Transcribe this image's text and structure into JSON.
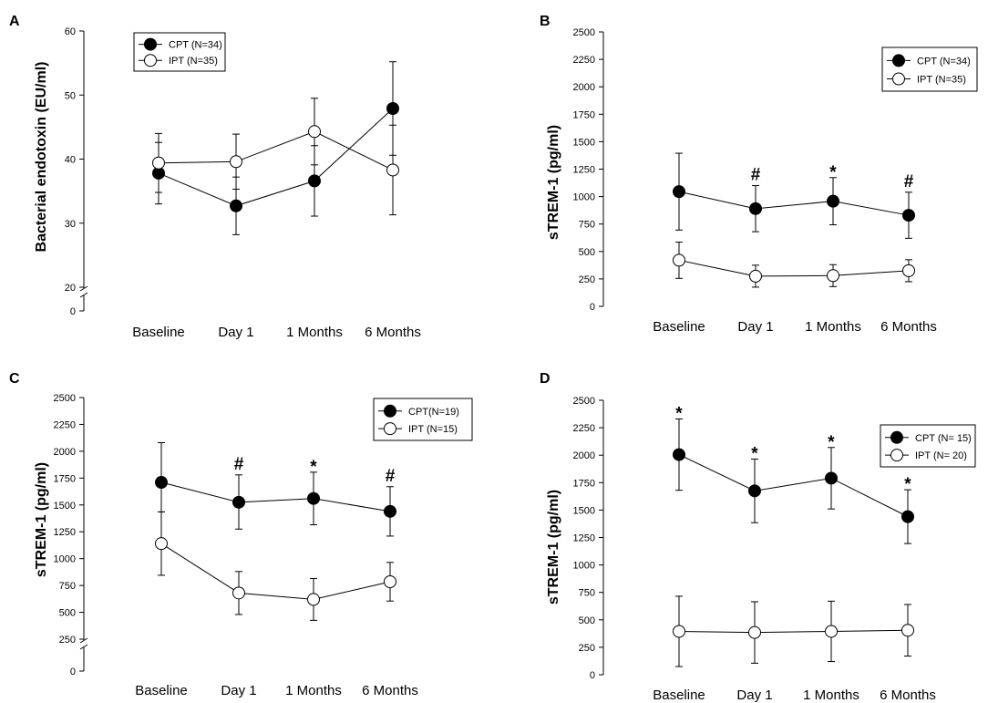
{
  "chart_data": [
    {
      "panel": "A",
      "type": "line",
      "ylabel": "Bacterial endotoxin (EU/ml)",
      "xlabel": "",
      "categories": [
        "Baseline",
        "Day 1",
        "1 Months",
        "6 Months"
      ],
      "ylim": [
        20,
        60
      ],
      "yticks": [
        20,
        30,
        40,
        50,
        60
      ],
      "axis_break": true,
      "below_break_tick": "0",
      "legend_position": "top-left",
      "series": [
        {
          "name": "CPT (N=34)",
          "marker": "filled",
          "values": [
            37.8,
            32.7,
            36.6,
            47.9
          ],
          "err_low": [
            4.8,
            4.5,
            5.5,
            7.3
          ],
          "err_high": [
            4.8,
            4.5,
            5.5,
            7.3
          ]
        },
        {
          "name": "IPT (N=35)",
          "marker": "open",
          "values": [
            39.4,
            39.6,
            44.3,
            38.3
          ],
          "err_low": [
            4.6,
            4.3,
            5.2,
            7.0
          ],
          "err_high": [
            4.6,
            4.3,
            5.2,
            7.0
          ]
        }
      ],
      "annotations": []
    },
    {
      "panel": "B",
      "type": "line",
      "ylabel": "sTREM-1 (pg/ml)",
      "xlabel": "",
      "categories": [
        "Baseline",
        "Day 1",
        "1 Months",
        "6 Months"
      ],
      "ylim": [
        0,
        2500
      ],
      "yticks": [
        0,
        250,
        500,
        750,
        1000,
        1250,
        1500,
        1750,
        2000,
        2250,
        2500
      ],
      "axis_break": false,
      "legend_position": "top-right",
      "series": [
        {
          "name": "CPT (N=34)",
          "marker": "filled",
          "values": [
            1045,
            890,
            958,
            830
          ],
          "err_low": [
            350,
            210,
            215,
            210
          ],
          "err_high": [
            350,
            210,
            215,
            210
          ]
        },
        {
          "name": "IPT (N=35)",
          "marker": "open",
          "values": [
            420,
            275,
            280,
            325
          ],
          "err_low": [
            165,
            100,
            100,
            100
          ],
          "err_high": [
            165,
            100,
            100,
            100
          ]
        }
      ],
      "annotations": [
        {
          "category": "Day 1",
          "text": "#"
        },
        {
          "category": "1 Months",
          "text": "*"
        },
        {
          "category": "6 Months",
          "text": "#"
        }
      ]
    },
    {
      "panel": "C",
      "type": "line",
      "ylabel": "sTREM-1 (pg/ml)",
      "xlabel": "",
      "categories": [
        "Baseline",
        "Day 1",
        "1 Months",
        "6 Months"
      ],
      "ylim": [
        250,
        2500
      ],
      "yticks": [
        250,
        500,
        750,
        1000,
        1250,
        1500,
        1750,
        2000,
        2250,
        2500
      ],
      "axis_break": true,
      "below_break_tick": "0",
      "legend_position": "top-right",
      "series": [
        {
          "name": "CPT(N=19)",
          "marker": "filled",
          "values": [
            1710,
            1525,
            1560,
            1440
          ],
          "err_low": [
            275,
            250,
            245,
            230
          ],
          "err_high": [
            370,
            255,
            245,
            230
          ]
        },
        {
          "name": "IPT (N=15)",
          "marker": "open",
          "values": [
            1140,
            680,
            620,
            785
          ],
          "err_low": [
            295,
            200,
            195,
            180
          ],
          "err_high": [
            295,
            200,
            195,
            180
          ]
        }
      ],
      "annotations": [
        {
          "category": "Day 1",
          "text": "#"
        },
        {
          "category": "1 Months",
          "text": "*"
        },
        {
          "category": "6 Months",
          "text": "#"
        }
      ]
    },
    {
      "panel": "D",
      "type": "line",
      "ylabel": "sTREM-1 (pg/ml)",
      "xlabel": "",
      "categories": [
        "Baseline",
        "Day 1",
        "1 Months",
        "6 Months"
      ],
      "ylim": [
        0,
        2500
      ],
      "yticks": [
        0,
        250,
        500,
        750,
        1000,
        1250,
        1500,
        1750,
        2000,
        2250,
        2500
      ],
      "axis_break": false,
      "legend_position": "top-right",
      "series": [
        {
          "name": "CPT (N= 15)",
          "marker": "filled",
          "values": [
            2005,
            1675,
            1790,
            1440
          ],
          "err_low": [
            325,
            290,
            280,
            245
          ],
          "err_high": [
            325,
            290,
            280,
            245
          ]
        },
        {
          "name": "IPT (N= 20)",
          "marker": "open",
          "values": [
            395,
            385,
            395,
            405
          ],
          "err_low": [
            320,
            280,
            275,
            235
          ],
          "err_high": [
            320,
            280,
            275,
            235
          ]
        }
      ],
      "annotations": [
        {
          "category": "Baseline",
          "text": "*"
        },
        {
          "category": "Day 1",
          "text": "*"
        },
        {
          "category": "1 Months",
          "text": "*"
        },
        {
          "category": "6 Months",
          "text": "*"
        }
      ]
    }
  ]
}
